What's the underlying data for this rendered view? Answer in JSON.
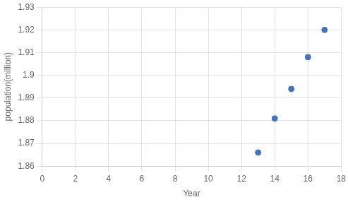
{
  "chart_data": {
    "type": "scatter",
    "x": [
      13,
      14,
      15,
      16,
      17
    ],
    "values": [
      1.866,
      1.881,
      1.894,
      1.908,
      1.92
    ],
    "xlabel": "Year",
    "ylabel": "population(million)",
    "xlim": [
      0,
      18
    ],
    "ylim": [
      1.86,
      1.93
    ],
    "xticks": [
      0,
      2,
      4,
      6,
      8,
      10,
      12,
      14,
      16,
      18
    ],
    "yticks": [
      1.86,
      1.87,
      1.88,
      1.89,
      1.9,
      1.91,
      1.92,
      1.93
    ],
    "color": "#4472C4",
    "grid": true
  }
}
